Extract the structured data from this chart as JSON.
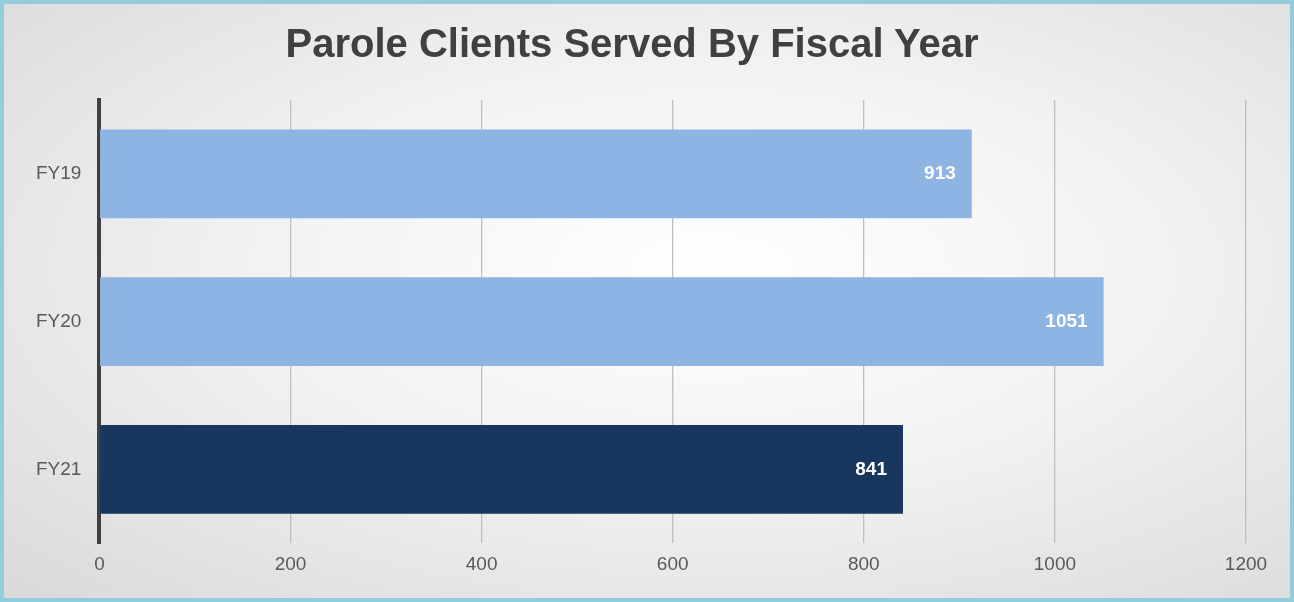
{
  "chart_data": {
    "type": "bar",
    "orientation": "horizontal",
    "title": "Parole Clients Served By Fiscal Year",
    "categories": [
      "FY19",
      "FY20",
      "FY21"
    ],
    "values": [
      913,
      1051,
      841
    ],
    "colors": [
      "#8eb4e3",
      "#8eb4e3",
      "#17375e"
    ],
    "xlim": [
      0,
      1200
    ],
    "xticks": [
      0,
      200,
      400,
      600,
      800,
      1000,
      1200
    ],
    "grid": "x",
    "data_labels": true,
    "legend": false
  }
}
